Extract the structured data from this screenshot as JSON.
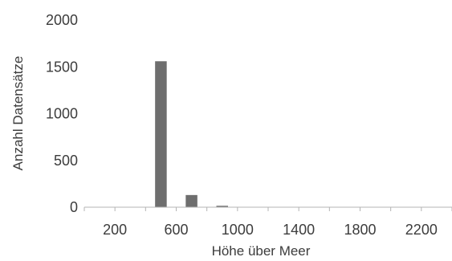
{
  "chart_data": {
    "type": "bar",
    "x": [
      200,
      300,
      500,
      700,
      900,
      1100,
      1300,
      1500,
      1700,
      1900,
      2100,
      2300
    ],
    "values": [
      0,
      0,
      1560,
      130,
      15,
      3,
      0,
      0,
      0,
      0,
      0,
      0
    ],
    "x_ticks": [
      "200",
      "600",
      "1000",
      "1400",
      "1800",
      "2200"
    ],
    "y_ticks": [
      "0",
      "500",
      "1000",
      "1500",
      "2000"
    ],
    "xlabel": "Höhe über Meer",
    "ylabel": "Anzahl Datensätze",
    "xlim": [
      0,
      2400
    ],
    "ylim": [
      0,
      2000
    ],
    "bar_width": 76,
    "grid": false,
    "colors": {
      "bar": "#6e6e6e",
      "axis": "#b4b4b4",
      "text": "#3c3c3c"
    }
  }
}
